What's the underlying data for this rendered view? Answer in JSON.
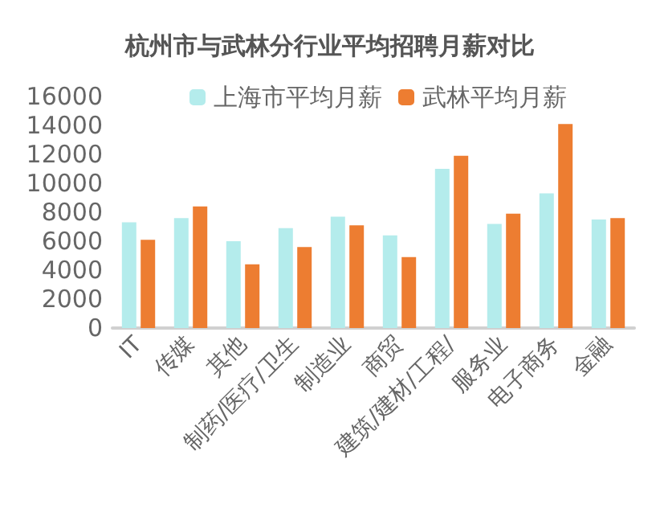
{
  "chart_data": {
    "type": "bar",
    "title": "杭州市与武林分行业平均招聘月薪对比",
    "categories": [
      "IT",
      "传媒",
      "其他",
      "制药/医疗/卫生",
      "制造业",
      "商贸",
      "建筑/建材/工程/",
      "服务业",
      "电子商务",
      "金融"
    ],
    "series": [
      {
        "name": "上海市平均月薪",
        "color": "#b4ecec",
        "values": [
          7300,
          7600,
          6000,
          6900,
          7700,
          6400,
          11000,
          7200,
          9300,
          7500
        ]
      },
      {
        "name": "武林平均月薪",
        "color": "#ed7d31",
        "values": [
          6100,
          8400,
          4400,
          5600,
          7100,
          4900,
          11900,
          7900,
          14100,
          7600
        ]
      }
    ],
    "ylim": [
      0,
      16000
    ],
    "yticks": [
      0,
      2000,
      4000,
      6000,
      8000,
      10000,
      12000,
      14000,
      16000
    ],
    "grid": false,
    "legend": "top"
  }
}
